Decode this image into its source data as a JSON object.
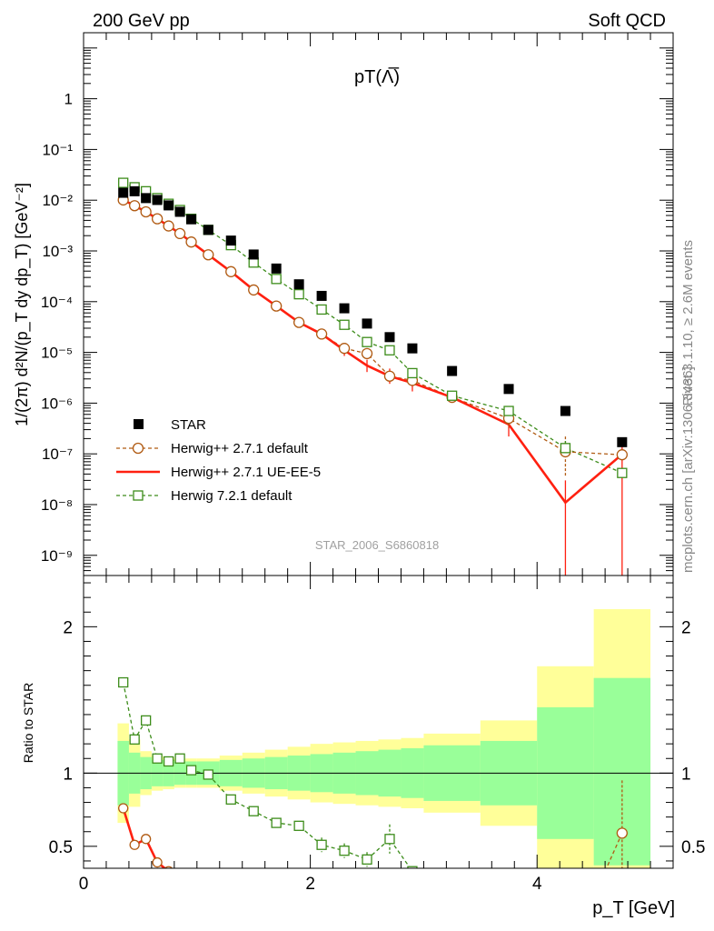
{
  "header": {
    "left": "200 GeV pp",
    "right": "Soft QCD",
    "plot_title": "pT(Λ̅)",
    "watermark": "STAR_2006_S6860818",
    "side_rivet": "Rivet 3.1.10, ≥ 2.6M events",
    "side_mcplots": "mcplots.cern.ch [arXiv:1306.3436]"
  },
  "axes": {
    "ylabel_main": "1/(2π) d²N/(p_T dy dp_T) [GeV⁻²]",
    "ylabel_ratio": "Ratio to STAR",
    "xlabel": "p_T [GeV]"
  },
  "legend": {
    "star": "STAR",
    "h271": "Herwig++ 2.7.1 default",
    "h271ue": "Herwig++ 2.7.1 UE-EE-5",
    "h721": "Herwig 7.2.1 default"
  },
  "colors": {
    "star": "#000000",
    "h271": "#b05a12",
    "h271ue": "#ff2010",
    "h721": "#3c8c1a",
    "band_inner": "#99ff99",
    "band_outer": "#ffff99"
  },
  "chart_data": [
    {
      "type": "scatter",
      "panel": "main",
      "yscale": "log",
      "xlim": [
        0,
        5.2
      ],
      "ylim": [
        4e-10,
        20
      ],
      "y_ticks": [
        "10⁻⁹",
        "10⁻⁸",
        "10⁻⁷",
        "10⁻⁶",
        "10⁻⁵",
        "10⁻⁴",
        "10⁻³",
        "10⁻²",
        "10⁻¹",
        "1"
      ],
      "series": [
        {
          "name": "STAR",
          "x": [
            0.35,
            0.45,
            0.55,
            0.65,
            0.75,
            0.85,
            0.95,
            1.1,
            1.3,
            1.5,
            1.7,
            1.9,
            2.1,
            2.3,
            2.5,
            2.7,
            2.9,
            3.25,
            3.75,
            4.25,
            4.75
          ],
          "y": [
            0.014,
            0.015,
            0.011,
            0.0101,
            0.0079,
            0.0059,
            0.0042,
            0.0026,
            0.0016,
            0.00085,
            0.00045,
            0.00022,
            0.00013,
            7.4e-05,
            3.7e-05,
            2e-05,
            1.2e-05,
            4.3e-06,
            1.9e-06,
            7e-07,
            1.7e-07
          ]
        },
        {
          "name": "Herwig++ 2.7.1 default",
          "x": [
            0.35,
            0.45,
            0.55,
            0.65,
            0.75,
            0.85,
            0.95,
            1.1,
            1.3,
            1.5,
            1.7,
            1.9,
            2.1,
            2.3,
            2.5,
            2.7,
            2.9,
            3.25,
            3.75,
            4.25,
            4.75
          ],
          "y": [
            0.0101,
            0.0078,
            0.0059,
            0.0043,
            0.0031,
            0.0022,
            0.0015,
            0.00084,
            0.00039,
            0.00017,
            8.2e-05,
            3.9e-05,
            2.3e-05,
            1.2e-05,
            9.5e-06,
            3.4e-06,
            2.8e-06,
            1.3e-06,
            5e-07,
            1.1e-07,
            9.6e-08
          ]
        },
        {
          "name": "Herwig++ 2.7.1 UE-EE-5",
          "x": [
            0.35,
            0.45,
            0.55,
            0.65,
            0.75,
            0.85,
            0.95,
            1.1,
            1.3,
            1.5,
            1.7,
            1.9,
            2.1,
            2.3,
            2.5,
            2.7,
            2.9,
            3.25,
            3.75,
            4.25,
            4.75
          ],
          "y": [
            0.0101,
            0.0078,
            0.0059,
            0.0043,
            0.0031,
            0.0022,
            0.0015,
            0.00084,
            0.00039,
            0.00017,
            8.2e-05,
            3.9e-05,
            2.3e-05,
            1.1e-05,
            5.5e-06,
            3.4e-06,
            2.5e-06,
            1.3e-06,
            3.8e-07,
            1.1e-08,
            9.8e-08
          ]
        },
        {
          "name": "Herwig 7.2.1 default",
          "x": [
            0.35,
            0.45,
            0.55,
            0.65,
            0.75,
            0.85,
            0.95,
            1.1,
            1.3,
            1.5,
            1.7,
            1.9,
            2.1,
            2.3,
            2.5,
            2.7,
            2.9,
            3.25,
            3.75,
            4.25,
            4.75
          ],
          "y": [
            0.022,
            0.018,
            0.015,
            0.011,
            0.0085,
            0.0064,
            0.0043,
            0.0026,
            0.0013,
            0.00059,
            0.00028,
            0.00014,
            7e-05,
            3.5e-05,
            1.6e-05,
            1.1e-05,
            3.9e-06,
            1.4e-06,
            7e-07,
            1.3e-07,
            4.2e-08
          ]
        }
      ]
    },
    {
      "type": "line",
      "panel": "ratio",
      "xlim": [
        0,
        5.2
      ],
      "ylim": [
        0.35,
        2.35
      ],
      "x_ticks": [
        0,
        2,
        4
      ],
      "y_ticks": [
        0.5,
        1,
        2
      ],
      "bins": [
        [
          0.3,
          0.4
        ],
        [
          0.4,
          0.5
        ],
        [
          0.5,
          0.6
        ],
        [
          0.6,
          0.7
        ],
        [
          0.7,
          0.8
        ],
        [
          0.8,
          0.9
        ],
        [
          0.9,
          1.0
        ],
        [
          1.0,
          1.2
        ],
        [
          1.2,
          1.4
        ],
        [
          1.4,
          1.6
        ],
        [
          1.6,
          1.8
        ],
        [
          1.8,
          2.0
        ],
        [
          2.0,
          2.2
        ],
        [
          2.2,
          2.4
        ],
        [
          2.4,
          2.6
        ],
        [
          2.6,
          2.8
        ],
        [
          2.8,
          3.0
        ],
        [
          3.0,
          3.5
        ],
        [
          3.5,
          4.0
        ],
        [
          4.0,
          4.5
        ],
        [
          4.5,
          5.0
        ]
      ],
      "band_inner": [
        [
          0.78,
          1.22
        ],
        [
          0.86,
          1.14
        ],
        [
          0.89,
          1.11
        ],
        [
          0.91,
          1.09
        ],
        [
          0.91,
          1.09
        ],
        [
          0.92,
          1.08
        ],
        [
          0.92,
          1.08
        ],
        [
          0.92,
          1.08
        ],
        [
          0.91,
          1.09
        ],
        [
          0.9,
          1.1
        ],
        [
          0.89,
          1.11
        ],
        [
          0.88,
          1.12
        ],
        [
          0.87,
          1.13
        ],
        [
          0.86,
          1.14
        ],
        [
          0.85,
          1.15
        ],
        [
          0.84,
          1.16
        ],
        [
          0.83,
          1.17
        ],
        [
          0.81,
          1.19
        ],
        [
          0.78,
          1.22
        ],
        [
          0.55,
          1.45
        ],
        [
          0.37,
          1.65
        ]
      ],
      "band_outer": [
        [
          0.66,
          1.34
        ],
        [
          0.77,
          1.23
        ],
        [
          0.85,
          1.15
        ],
        [
          0.88,
          1.12
        ],
        [
          0.89,
          1.11
        ],
        [
          0.9,
          1.1
        ],
        [
          0.9,
          1.1
        ],
        [
          0.9,
          1.1
        ],
        [
          0.88,
          1.12
        ],
        [
          0.86,
          1.14
        ],
        [
          0.84,
          1.16
        ],
        [
          0.82,
          1.18
        ],
        [
          0.8,
          1.2
        ],
        [
          0.79,
          1.21
        ],
        [
          0.78,
          1.22
        ],
        [
          0.77,
          1.23
        ],
        [
          0.76,
          1.24
        ],
        [
          0.73,
          1.27
        ],
        [
          0.64,
          1.36
        ],
        [
          0.35,
          1.73
        ],
        [
          0.35,
          2.12
        ]
      ],
      "series": [
        {
          "name": "Herwig 7.2.1 default",
          "x": [
            0.35,
            0.45,
            0.55,
            0.65,
            0.75,
            0.85,
            0.95,
            1.1,
            1.3,
            1.5,
            1.7,
            1.9,
            2.1,
            2.3,
            2.5,
            2.7,
            2.9
          ],
          "y": [
            1.62,
            1.23,
            1.36,
            1.1,
            1.08,
            1.1,
            1.02,
            0.99,
            0.82,
            0.74,
            0.66,
            0.64,
            0.51,
            0.47,
            0.41,
            0.55,
            0.33
          ]
        },
        {
          "name": "Herwig++ 2.7.1 UE-EE-5",
          "x": [
            0.35,
            0.45,
            0.55,
            0.65,
            0.75
          ],
          "y": [
            0.76,
            0.51,
            0.55,
            0.39,
            0.33
          ]
        },
        {
          "name": "Herwig++ 2.7.1 default",
          "x": [
            4.6,
            4.75
          ],
          "y": [
            0.33,
            0.59
          ]
        }
      ]
    }
  ]
}
